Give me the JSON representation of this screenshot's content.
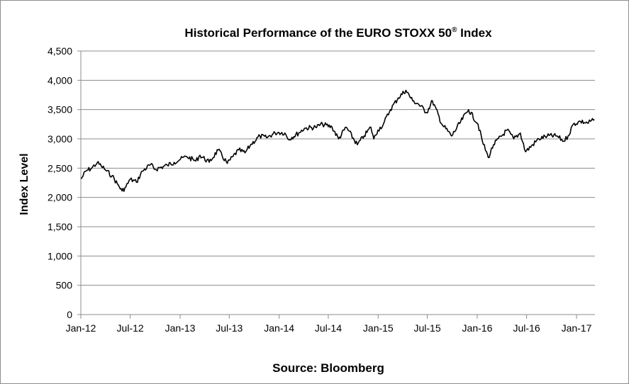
{
  "chart_data": {
    "type": "line",
    "title": "Historical Performance of the EURO STOXX 50",
    "title_superscript": "®",
    "title_suffix": " Index",
    "xlabel": "",
    "ylabel": "Index Level",
    "ylim": [
      0,
      4500
    ],
    "y_ticks": [
      "0",
      "500",
      "1,000",
      "1,500",
      "2,000",
      "2,500",
      "3,000",
      "3,500",
      "4,000",
      "4,500"
    ],
    "x_ticks": [
      "Jan-12",
      "Jul-12",
      "Jan-13",
      "Jul-13",
      "Jan-14",
      "Jul-14",
      "Jan-15",
      "Jul-15",
      "Jan-16",
      "Jul-16",
      "Jan-17"
    ],
    "xlim": [
      "2012-01-01",
      "2017-03-10"
    ],
    "grid": true,
    "legend": "none",
    "series": [
      {
        "x": [
          "2012-01-02",
          "2012-01-20",
          "2012-02-10",
          "2012-03-01",
          "2012-03-16",
          "2012-04-05",
          "2012-04-25",
          "2012-05-15",
          "2012-06-01",
          "2012-06-15",
          "2012-07-01",
          "2012-07-24",
          "2012-08-15",
          "2012-09-14",
          "2012-10-01",
          "2012-11-15",
          "2012-12-10",
          "2013-01-02",
          "2013-01-25",
          "2013-02-28",
          "2013-03-15",
          "2013-04-18",
          "2013-05-21",
          "2013-06-24",
          "2013-07-15",
          "2013-08-05",
          "2013-08-28",
          "2013-09-20",
          "2013-10-22",
          "2013-11-15",
          "2013-12-17",
          "2013-12-31",
          "2014-01-22",
          "2014-02-03",
          "2014-03-14",
          "2014-04-04",
          "2014-05-15",
          "2014-06-10",
          "2014-07-15",
          "2014-08-08",
          "2014-09-05",
          "2014-10-16",
          "2014-11-10",
          "2014-12-05",
          "2014-12-16",
          "2014-12-31",
          "2015-01-20",
          "2015-02-15",
          "2015-03-16",
          "2015-04-13",
          "2015-05-08",
          "2015-05-28",
          "2015-06-29",
          "2015-07-20",
          "2015-08-24",
          "2015-09-29",
          "2015-11-30",
          "2016-01-04",
          "2016-01-20",
          "2016-02-11",
          "2016-03-01",
          "2016-04-20",
          "2016-05-15",
          "2016-06-08",
          "2016-06-27",
          "2016-08-15",
          "2016-09-15",
          "2016-10-20",
          "2016-11-15",
          "2016-12-01",
          "2016-12-20",
          "2017-01-15",
          "2017-02-10",
          "2017-03-08"
        ],
        "values": [
          2316,
          2450,
          2500,
          2590,
          2540,
          2450,
          2370,
          2230,
          2110,
          2180,
          2310,
          2260,
          2450,
          2560,
          2480,
          2550,
          2600,
          2650,
          2700,
          2620,
          2720,
          2600,
          2810,
          2580,
          2700,
          2810,
          2760,
          2910,
          3050,
          3020,
          3100,
          3110,
          3100,
          2990,
          3100,
          3180,
          3200,
          3250,
          3200,
          3000,
          3200,
          2900,
          3050,
          3200,
          3000,
          3150,
          3250,
          3500,
          3700,
          3830,
          3650,
          3600,
          3450,
          3650,
          3250,
          3050,
          3500,
          3250,
          2960,
          2680,
          2900,
          3150,
          3000,
          3100,
          2780,
          3000,
          3050,
          3050,
          2960,
          3050,
          3250,
          3300,
          3270,
          3330
        ]
      }
    ]
  },
  "footer": {
    "source": "Source: Bloomberg"
  }
}
